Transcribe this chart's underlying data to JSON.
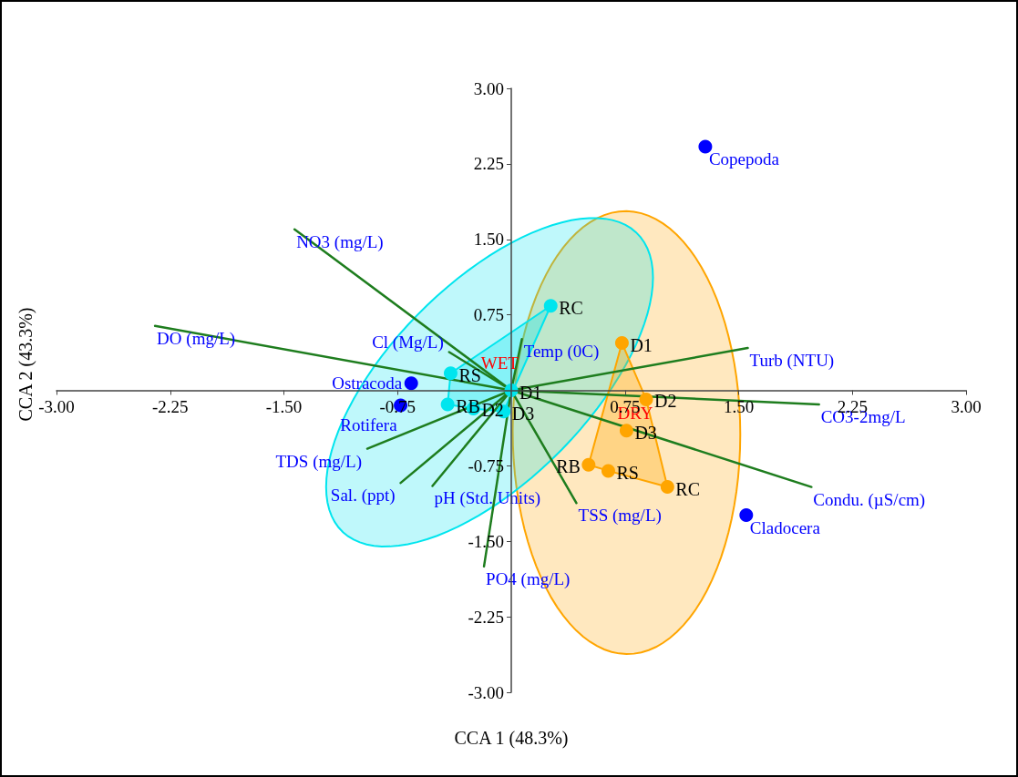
{
  "chart_data": {
    "type": "scatter",
    "xlabel": "CCA 1 (48.3%)",
    "ylabel": "CCA 2 (43.3%)",
    "xlim": [
      -3,
      3
    ],
    "ylim": [
      -3,
      3
    ],
    "xticks": [
      {
        "value": -3,
        "label": "-3.00"
      },
      {
        "value": -2.25,
        "label": "-2.25"
      },
      {
        "value": -1.5,
        "label": "-1.50"
      },
      {
        "value": -0.75,
        "label": "-0.75"
      },
      {
        "value": 0.75,
        "label": "0.75"
      },
      {
        "value": 1.5,
        "label": "1.50"
      },
      {
        "value": 2.25,
        "label": "2.25"
      },
      {
        "value": 3,
        "label": "3.00"
      }
    ],
    "yticks": [
      {
        "value": -3,
        "label": "-3.00"
      },
      {
        "value": -2.25,
        "label": "-2.25"
      },
      {
        "value": -1.5,
        "label": "-1.50"
      },
      {
        "value": -0.75,
        "label": "-0.75"
      },
      {
        "value": 0.75,
        "label": "0.75"
      },
      {
        "value": 1.5,
        "label": "1.50"
      },
      {
        "value": 2.25,
        "label": "2.25"
      },
      {
        "value": 3,
        "label": "3.00"
      }
    ],
    "grid": false,
    "legend": false,
    "marker": "circle",
    "series": [
      {
        "color": "#00e5ee",
        "x": [
          0.26,
          -0.4,
          -0.42,
          -0.25,
          -0.05,
          0.0
        ],
        "values": [
          0.84,
          0.17,
          -0.14,
          -0.18,
          -0.21,
          0.0
        ]
      },
      {
        "color": "#ffa500",
        "x": [
          0.73,
          0.89,
          0.76,
          0.64,
          0.51,
          1.03
        ],
        "values": [
          0.47,
          -0.09,
          -0.4,
          -0.8,
          -0.74,
          -0.96
        ]
      },
      {
        "name": "Copepoda",
        "color": "#0000ff",
        "x": [
          1.28
        ],
        "values": [
          2.42
        ]
      },
      {
        "name": "Cladocera",
        "color": "#0000ff",
        "x": [
          1.55
        ],
        "values": [
          -1.24
        ]
      },
      {
        "name": "Ostracoda",
        "color": "#0000ff",
        "x": [
          -0.66
        ],
        "values": [
          0.07
        ]
      },
      {
        "name": "Rotifera",
        "color": "#0000ff",
        "x": [
          -0.73
        ],
        "values": [
          -0.15
        ]
      },
      {
        "type": "line",
        "marker": "none",
        "color": "#1e7d1e",
        "x": [
          0,
          -1.43
        ],
        "values": [
          0,
          1.6
        ]
      },
      {
        "type": "line",
        "marker": "none",
        "color": "#1e7d1e",
        "x": [
          0,
          -2.35
        ],
        "values": [
          0,
          0.64
        ]
      },
      {
        "type": "line",
        "marker": "none",
        "color": "#1e7d1e",
        "x": [
          0,
          -0.41
        ],
        "values": [
          0,
          0.38
        ]
      },
      {
        "type": "line",
        "marker": "none",
        "color": "#1e7d1e",
        "x": [
          0,
          0.07
        ],
        "values": [
          0,
          0.51
        ]
      },
      {
        "type": "line",
        "marker": "none",
        "color": "#1e7d1e",
        "x": [
          0,
          1.56
        ],
        "values": [
          0,
          0.42
        ]
      },
      {
        "type": "line",
        "marker": "none",
        "color": "#1e7d1e",
        "x": [
          0,
          2.03
        ],
        "values": [
          0,
          -0.14
        ]
      },
      {
        "type": "line",
        "marker": "none",
        "color": "#1e7d1e",
        "x": [
          0,
          1.98
        ],
        "values": [
          0,
          -0.96
        ]
      },
      {
        "type": "line",
        "marker": "none",
        "color": "#1e7d1e",
        "x": [
          0,
          0.43
        ],
        "values": [
          0,
          -1.12
        ]
      },
      {
        "type": "line",
        "marker": "none",
        "color": "#1e7d1e",
        "x": [
          0,
          -0.18
        ],
        "values": [
          0,
          -1.75
        ]
      },
      {
        "type": "line",
        "marker": "none",
        "color": "#1e7d1e",
        "x": [
          0,
          -0.52
        ],
        "values": [
          0,
          -0.95
        ]
      },
      {
        "type": "line",
        "marker": "none",
        "color": "#1e7d1e",
        "x": [
          0,
          -0.73
        ],
        "values": [
          0,
          -0.92
        ]
      },
      {
        "type": "line",
        "marker": "none",
        "color": "#1e7d1e",
        "x": [
          0,
          -0.95
        ],
        "values": [
          0,
          -0.58
        ]
      }
    ],
    "annotations": [
      {
        "text": "WET",
        "x": -0.14,
        "y": 0.08
      },
      {
        "text": "DRY",
        "x": 0.76,
        "y": -0.42
      },
      {
        "text": "RC",
        "x": 0.26,
        "y": 0.84
      },
      {
        "text": "RS",
        "x": -0.4,
        "y": 0.17
      },
      {
        "text": "RB",
        "x": -0.42,
        "y": -0.14
      },
      {
        "text": "D2",
        "x": -0.25,
        "y": -0.18
      },
      {
        "text": "D3",
        "x": -0.05,
        "y": -0.21
      },
      {
        "text": "D1",
        "x": 0.0,
        "y": 0.0
      },
      {
        "text": "D1",
        "x": 0.73,
        "y": 0.47
      },
      {
        "text": "D2",
        "x": 0.89,
        "y": -0.09
      },
      {
        "text": "D3",
        "x": 0.76,
        "y": -0.4
      },
      {
        "text": "RS",
        "x": 0.64,
        "y": -0.8
      },
      {
        "text": "RB",
        "x": 0.51,
        "y": -0.74
      },
      {
        "text": "RC",
        "x": 1.03,
        "y": -0.96
      },
      {
        "text": "NO3 (mg/L)",
        "x": -1.43,
        "y": 1.6
      },
      {
        "text": "DO (mg/L)",
        "x": -2.35,
        "y": 0.64
      },
      {
        "text": "Cl (Mg/L)",
        "x": -0.41,
        "y": 0.38
      },
      {
        "text": "Temp (0C)",
        "x": 0.07,
        "y": 0.51
      },
      {
        "text": "Turb (NTU)",
        "x": 1.56,
        "y": 0.42
      },
      {
        "text": "CO3-2mg/L",
        "x": 2.03,
        "y": -0.14
      },
      {
        "text": "Condu. (µS/cm)",
        "x": 1.98,
        "y": -0.96
      },
      {
        "text": "TSS (mg/L)",
        "x": 0.43,
        "y": -1.12
      },
      {
        "text": "PO4 (mg/L)",
        "x": -0.18,
        "y": -1.75
      },
      {
        "text": "pH (Std. Units)",
        "x": -0.52,
        "y": -0.95
      },
      {
        "text": "Sal. (ppt)",
        "x": -0.73,
        "y": -0.92
      },
      {
        "text": "TDS (mg/L)",
        "x": -0.95,
        "y": -0.58
      }
    ]
  }
}
